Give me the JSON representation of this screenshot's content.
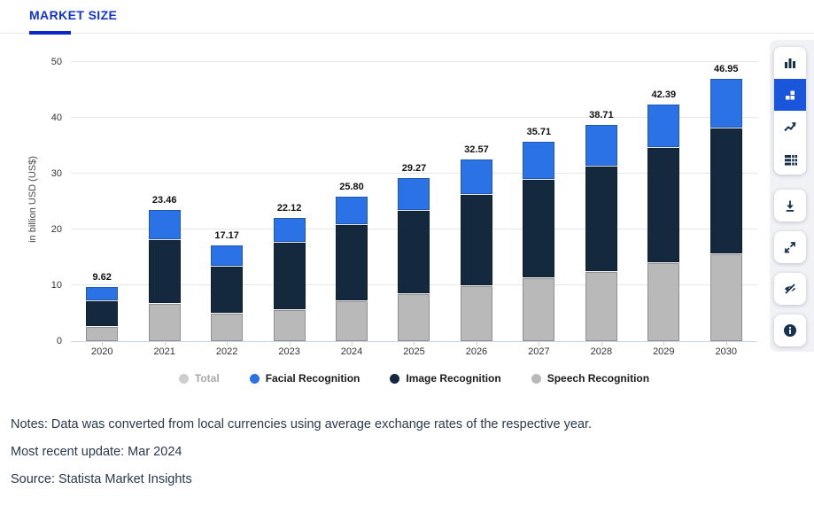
{
  "header": {
    "tab_label": "MARKET SIZE"
  },
  "chart_data": {
    "type": "bar",
    "stacked": true,
    "title": "",
    "ylabel": "in billion USD (US$)",
    "xlabel": "",
    "ylim": [
      0,
      52.4
    ],
    "yticks": [
      0,
      10,
      20,
      30,
      40,
      50
    ],
    "grid": true,
    "legend_position": "bottom",
    "categories": [
      "2020",
      "2021",
      "2022",
      "2023",
      "2024",
      "2025",
      "2026",
      "2027",
      "2028",
      "2029",
      "2030"
    ],
    "series": [
      {
        "name": "Speech Recognition",
        "color": "#b9b9b9",
        "values": [
          2.75,
          6.75,
          5.1,
          5.7,
          7.25,
          8.5,
          10.05,
          11.4,
          12.6,
          14.1,
          15.7
        ]
      },
      {
        "name": "Image Recognition",
        "color": "#14283e",
        "values": [
          4.52,
          11.5,
          8.33,
          12.05,
          13.65,
          15.0,
          16.25,
          17.6,
          18.9,
          20.6,
          22.6
        ]
      },
      {
        "name": "Facial Recognition",
        "color": "#2a72e5",
        "values": [
          2.35,
          5.21,
          3.74,
          4.37,
          4.9,
          5.77,
          6.27,
          6.71,
          7.21,
          7.69,
          8.65
        ]
      }
    ],
    "totals": [
      9.62,
      23.46,
      17.17,
      22.12,
      25.8,
      29.27,
      32.57,
      35.71,
      38.71,
      42.39,
      46.95
    ],
    "total_labels": [
      "9.62",
      "23.46",
      "17.17",
      "22.12",
      "25.80",
      "29.27",
      "32.57",
      "35.71",
      "38.71",
      "42.39",
      "46.95"
    ],
    "legend": [
      {
        "label": "Total",
        "color": "#cdcdcd",
        "disabled": true
      },
      {
        "label": "Facial Recognition",
        "color": "#2a72e5",
        "disabled": false
      },
      {
        "label": "Image Recognition",
        "color": "#15273f",
        "disabled": false
      },
      {
        "label": "Speech Recognition",
        "color": "#b9b9b9",
        "disabled": false
      }
    ]
  },
  "toolbar": {
    "chart_types": [
      {
        "icon": "column-chart-icon",
        "selected": false
      },
      {
        "icon": "stacked-chart-icon",
        "selected": true
      },
      {
        "icon": "line-chart-icon",
        "selected": false
      },
      {
        "icon": "table-view-icon",
        "selected": false
      }
    ],
    "actions": [
      {
        "icon": "download-icon"
      },
      {
        "icon": "fullscreen-icon"
      },
      {
        "icon": "eye-off-icon"
      },
      {
        "icon": "info-icon"
      }
    ],
    "selected_color": "#1a56db",
    "icon_color": "#16324f"
  },
  "footer": {
    "notes": "Notes: Data was converted from local currencies using average exchange rates of the respective year.",
    "update": "Most recent update: Mar 2024",
    "source": "Source: Statista Market Insights"
  },
  "colors": {
    "tab_text": "#1232d4",
    "tab_underline": "#0c28c9",
    "gridline": "#e6e6e6",
    "axis_line": "#c9d4e8",
    "notes_text": "#2a3950"
  }
}
